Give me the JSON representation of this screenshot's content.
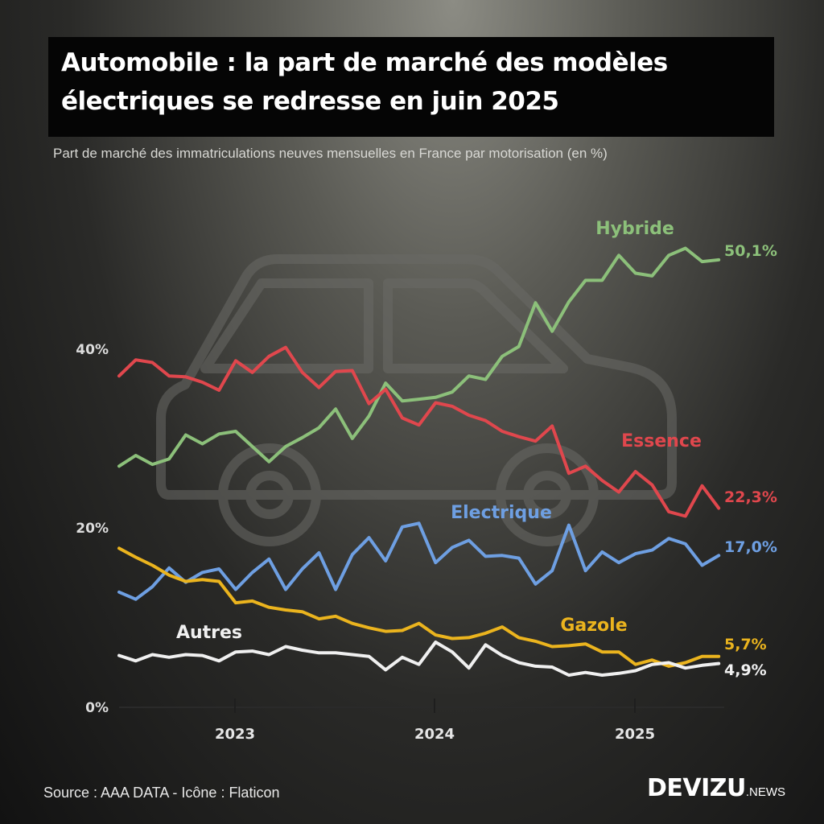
{
  "title": {
    "line1": "Automobile : la part de marché des modèles",
    "line2": "électriques se redresse en juin 2025"
  },
  "subtitle": "Part de marché des immatriculations neuves mensuelles en France par motorisation (en %)",
  "source": "Source : AAA DATA - Icône : Flaticon",
  "brand": {
    "main": "DEVIZU",
    "sub": ".NEWS"
  },
  "chart_data": {
    "type": "line",
    "title": "Automobile : la part de marché des modèles électriques se redresse en juin 2025",
    "ylabel": "en %",
    "ylim": [
      0,
      50
    ],
    "yticks": [
      {
        "value": 0,
        "label": "0%"
      },
      {
        "value": 20,
        "label": "20%"
      },
      {
        "value": 40,
        "label": "40%"
      }
    ],
    "xticks": [
      {
        "index": 6,
        "label": "2023"
      },
      {
        "index": 18,
        "label": "2024"
      },
      {
        "index": 30,
        "label": "2025"
      }
    ],
    "x_start": "juil. 2022",
    "x_end": "juin 2025",
    "series": [
      {
        "name": "Hybride",
        "color": "#8cc07a",
        "end_label": "50,1%",
        "values": [
          27.0,
          28.2,
          27.2,
          27.8,
          30.5,
          29.5,
          30.6,
          30.9,
          29.2,
          27.5,
          29.2,
          30.2,
          31.3,
          33.4,
          30.1,
          32.6,
          36.3,
          34.3,
          34.5,
          34.7,
          35.3,
          37.1,
          36.7,
          39.3,
          40.4,
          45.3,
          42.1,
          45.4,
          47.8,
          47.8,
          50.6,
          48.6,
          48.3,
          50.6,
          51.4,
          49.9,
          50.1
        ]
      },
      {
        "name": "Essence",
        "color": "#e0474d",
        "end_label": "22,3%",
        "values": [
          37.1,
          38.9,
          38.6,
          37.1,
          37.0,
          36.4,
          35.5,
          38.8,
          37.5,
          39.3,
          40.3,
          37.5,
          35.8,
          37.6,
          37.7,
          34.0,
          35.6,
          32.4,
          31.6,
          34.1,
          33.7,
          32.7,
          32.1,
          30.9,
          30.3,
          29.8,
          31.5,
          26.2,
          27.0,
          25.4,
          24.1,
          26.4,
          24.9,
          21.9,
          21.4,
          24.8,
          22.3
        ]
      },
      {
        "name": "Electrique",
        "color": "#6e9fe2",
        "end_label": "17,0%",
        "values": [
          12.9,
          12.1,
          13.5,
          15.6,
          14.0,
          15.1,
          15.5,
          13.2,
          15.1,
          16.6,
          13.2,
          15.5,
          17.3,
          13.2,
          17.1,
          19.0,
          16.4,
          20.2,
          20.6,
          16.2,
          17.9,
          18.7,
          16.9,
          17.0,
          16.7,
          13.8,
          15.3,
          20.4,
          15.3,
          17.4,
          16.2,
          17.2,
          17.6,
          18.9,
          18.3,
          15.9,
          17.0
        ]
      },
      {
        "name": "Gazole",
        "color": "#ebb41e",
        "end_label": "5,7%",
        "values": [
          17.8,
          16.8,
          15.9,
          14.8,
          14.1,
          14.3,
          14.1,
          11.7,
          11.9,
          11.2,
          10.9,
          10.7,
          9.9,
          10.2,
          9.4,
          8.9,
          8.5,
          8.6,
          9.4,
          8.1,
          7.7,
          7.8,
          8.3,
          9.0,
          7.8,
          7.4,
          6.8,
          6.9,
          7.1,
          6.2,
          6.2,
          4.8,
          5.3,
          4.6,
          5.0,
          5.7,
          5.7
        ]
      },
      {
        "name": "Autres",
        "color": "#f0f0f0",
        "end_label": "4,9%",
        "values": [
          5.8,
          5.2,
          5.9,
          5.6,
          5.9,
          5.8,
          5.2,
          6.2,
          6.3,
          5.9,
          6.8,
          6.4,
          6.1,
          6.1,
          5.9,
          5.7,
          4.2,
          5.6,
          4.8,
          7.3,
          6.2,
          4.4,
          7.0,
          5.8,
          5.0,
          4.6,
          4.5,
          3.6,
          3.9,
          3.6,
          3.8,
          4.1,
          4.8,
          5.0,
          4.4,
          4.7,
          4.9
        ]
      }
    ],
    "series_labels": [
      "Hybride",
      "Essence",
      "Electrique",
      "Gazole",
      "Autres"
    ]
  }
}
